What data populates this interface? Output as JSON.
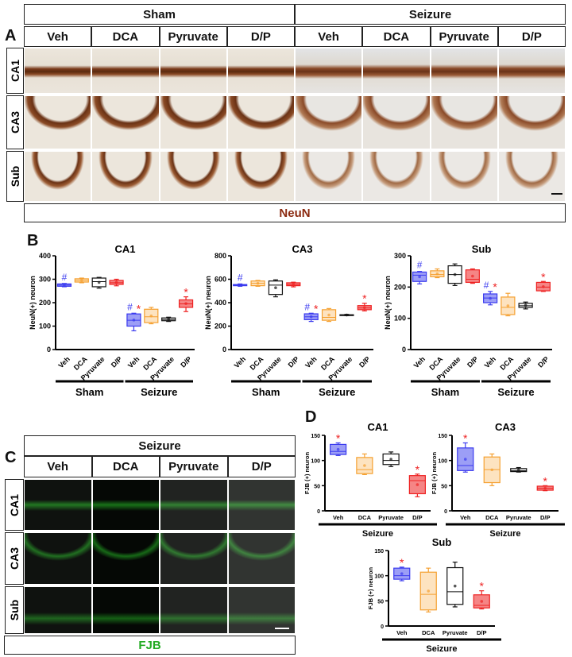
{
  "panelA": {
    "letter": "A",
    "groups": [
      "Sham",
      "Seizure"
    ],
    "treatments": [
      "Veh",
      "DCA",
      "Pyruvate",
      "D/P",
      "Veh",
      "DCA",
      "Pyruvate",
      "D/P"
    ],
    "regions": [
      "CA1",
      "CA3",
      "Sub"
    ],
    "stain": "NeuN",
    "stain_color": "#8b2a10"
  },
  "panelB": {
    "letter": "B"
  },
  "panelC": {
    "letter": "C",
    "group": "Seizure",
    "treatments": [
      "Veh",
      "DCA",
      "Pyruvate",
      "D/P"
    ],
    "regions": [
      "CA1",
      "CA3",
      "Sub"
    ],
    "stain": "FJB",
    "stain_color": "#22aa22"
  },
  "panelD": {
    "letter": "D"
  },
  "colors": {
    "Veh": "#3b3bef",
    "DCA": "#f5a030",
    "Pyruvate": "#111111",
    "D/P": "#ee2222",
    "hash": "#3b3bef",
    "star": "#ee2222"
  },
  "chart_data": [
    {
      "panel": "B",
      "type": "box",
      "title": "CA1",
      "ylabel": "NeuN(+) neuron",
      "ylim": [
        0,
        400
      ],
      "yticks": [
        0,
        100,
        200,
        300,
        400
      ],
      "categories": [
        "Veh",
        "DCA",
        "Pyruvate",
        "D/P",
        "Veh",
        "DCA",
        "Pyruvate",
        "D/P"
      ],
      "groups": [
        {
          "label": "Sham",
          "span": [
            0,
            3
          ]
        },
        {
          "label": "Seizure",
          "span": [
            4,
            7
          ]
        }
      ],
      "boxes": [
        [
          268,
          270,
          275,
          280,
          282
        ],
        [
          285,
          288,
          295,
          302,
          305
        ],
        [
          262,
          268,
          290,
          305,
          308
        ],
        [
          272,
          278,
          285,
          295,
          300
        ],
        [
          80,
          100,
          125,
          152,
          155
        ],
        [
          110,
          115,
          140,
          172,
          180
        ],
        [
          120,
          123,
          128,
          135,
          138
        ],
        [
          162,
          180,
          195,
          212,
          225
        ]
      ],
      "marks": [
        "#",
        "",
        "",
        "",
        "#*",
        "",
        "",
        "*"
      ]
    },
    {
      "panel": "B",
      "type": "box",
      "title": "CA3",
      "ylabel": "NeuN(+) neuron",
      "ylim": [
        0,
        800
      ],
      "yticks": [
        0,
        200,
        400,
        600,
        800
      ],
      "categories": [
        "Veh",
        "DCA",
        "Pyruvate",
        "D/P",
        "Veh",
        "DCA",
        "Pyruvate",
        "D/P"
      ],
      "groups": [
        {
          "label": "Sham",
          "span": [
            0,
            3
          ]
        },
        {
          "label": "Seizure",
          "span": [
            4,
            7
          ]
        }
      ],
      "boxes": [
        [
          540,
          545,
          550,
          555,
          560
        ],
        [
          540,
          545,
          565,
          585,
          590
        ],
        [
          450,
          470,
          550,
          585,
          595
        ],
        [
          535,
          545,
          555,
          570,
          575
        ],
        [
          240,
          255,
          280,
          305,
          310
        ],
        [
          240,
          250,
          275,
          340,
          350
        ],
        [
          290,
          292,
          295,
          297,
          300
        ],
        [
          330,
          340,
          355,
          375,
          395
        ]
      ],
      "marks": [
        "#",
        "",
        "",
        "",
        "#*",
        "",
        "",
        "*"
      ]
    },
    {
      "panel": "B",
      "type": "box",
      "title": "Sub",
      "ylabel": "NeuN(+) neuron",
      "ylim": [
        0,
        300
      ],
      "yticks": [
        0,
        100,
        200,
        300
      ],
      "categories": [
        "Veh",
        "DCA",
        "Pyruvate",
        "D/P",
        "Veh",
        "DCA",
        "Pyruvate",
        "D/P"
      ],
      "groups": [
        {
          "label": "Sham",
          "span": [
            0,
            3
          ]
        },
        {
          "label": "Seizure",
          "span": [
            4,
            7
          ]
        }
      ],
      "boxes": [
        [
          210,
          218,
          238,
          248,
          250
        ],
        [
          230,
          233,
          240,
          252,
          258
        ],
        [
          205,
          212,
          240,
          268,
          274
        ],
        [
          212,
          215,
          225,
          255,
          258
        ],
        [
          143,
          150,
          165,
          178,
          186
        ],
        [
          108,
          112,
          135,
          168,
          180
        ],
        [
          130,
          135,
          140,
          148,
          152
        ],
        [
          186,
          188,
          200,
          215,
          218
        ]
      ],
      "marks": [
        "#",
        "",
        "",
        "",
        "#*",
        "",
        "",
        "*"
      ]
    },
    {
      "panel": "D",
      "type": "box",
      "title": "CA1",
      "ylabel": "FJB (+) neuron",
      "ylim": [
        0,
        150
      ],
      "yticks": [
        0,
        50,
        100,
        150
      ],
      "categories": [
        "Veh",
        "DCA",
        "Pyruvate",
        "D/P"
      ],
      "groups": [
        {
          "label": "Seizure",
          "span": [
            0,
            3
          ]
        }
      ],
      "boxes": [
        [
          110,
          112,
          118,
          132,
          135
        ],
        [
          72,
          74,
          82,
          106,
          113
        ],
        [
          88,
          92,
          100,
          113,
          117
        ],
        [
          28,
          34,
          60,
          70,
          73
        ]
      ],
      "marks": [
        "*",
        "",
        "",
        "*"
      ]
    },
    {
      "panel": "D",
      "type": "box",
      "title": "CA3",
      "ylabel": "FJB (+) neuron",
      "ylim": [
        0,
        150
      ],
      "yticks": [
        0,
        50,
        100,
        150
      ],
      "categories": [
        "Veh",
        "DCA",
        "Pyruvate",
        "D/P"
      ],
      "groups": [
        {
          "label": "Seizure",
          "span": [
            0,
            3
          ]
        }
      ],
      "boxes": [
        [
          77,
          80,
          90,
          125,
          135
        ],
        [
          50,
          56,
          82,
          107,
          113
        ],
        [
          77,
          78,
          80,
          84,
          86
        ],
        [
          40,
          41,
          45,
          49,
          50
        ]
      ],
      "marks": [
        "*",
        "",
        "",
        "*"
      ]
    },
    {
      "panel": "D",
      "type": "box",
      "title": "Sub",
      "ylabel": "FJB (+) neuron",
      "ylim": [
        0,
        150
      ],
      "yticks": [
        0,
        50,
        100,
        150
      ],
      "categories": [
        "Veh",
        "DCA",
        "Pyruvate",
        "D/P"
      ],
      "groups": [
        {
          "label": "Seizure",
          "span": [
            0,
            3
          ]
        }
      ],
      "boxes": [
        [
          90,
          93,
          100,
          115,
          117
        ],
        [
          28,
          32,
          63,
          107,
          115
        ],
        [
          38,
          43,
          68,
          116,
          127
        ],
        [
          34,
          36,
          41,
          62,
          70
        ]
      ],
      "marks": [
        "*",
        "",
        "",
        "*"
      ]
    }
  ]
}
